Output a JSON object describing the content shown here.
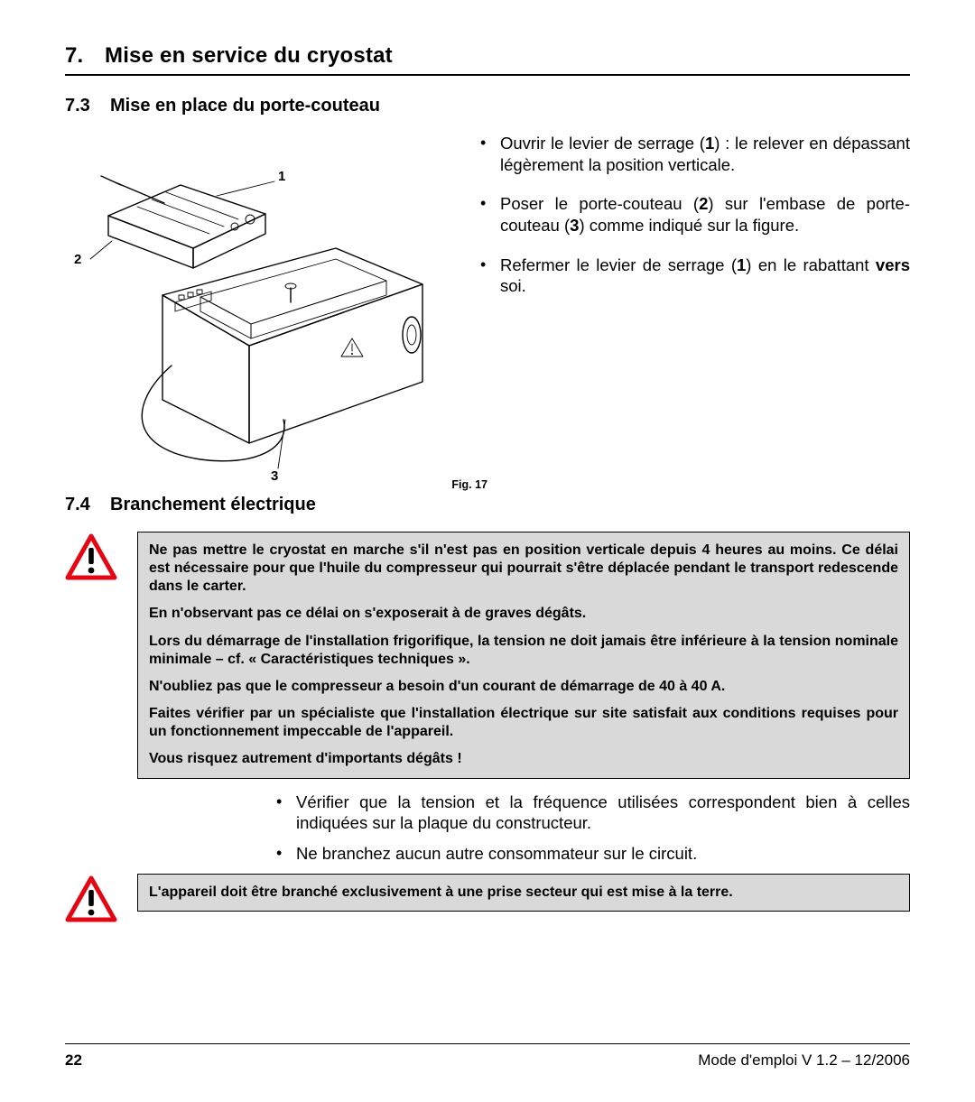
{
  "chapter": {
    "number": "7.",
    "title": "Mise en service du cryostat"
  },
  "section73": {
    "number": "7.3",
    "title": "Mise en place du porte-couteau",
    "figure": {
      "caption": "Fig. 17",
      "callouts": {
        "c1": "1",
        "c2": "2",
        "c3": "3"
      }
    },
    "bullets": [
      {
        "html": "Ouvrir le levier de serrage (<b>1</b>) : le relever en dépassant légèrement la position verticale."
      },
      {
        "html": "Poser le porte-couteau (<b>2</b>) sur l'embase de porte-couteau (<b>3</b>) comme indiqué sur la figure."
      },
      {
        "html": "Refermer le levier de serrage (<b>1</b>) en le rabattant <b>vers</b> soi."
      }
    ]
  },
  "section74": {
    "number": "7.4",
    "title": "Branchement électrique",
    "warning1": {
      "p1": "Ne pas mettre le cryostat en marche s'il n'est pas en position verticale depuis 4 heures au moins. Ce délai est nécessaire pour que l'huile du compresseur qui pourrait s'être déplacée pendant le transport redescende dans le carter.",
      "p2": "En n'observant pas ce délai on s'exposerait à de graves dégâts.",
      "p3": "Lors du démarrage de l'installation frigorifique, la tension ne doit jamais être inférieure à la tension nominale minimale – cf. « Caractéristiques techniques ».",
      "p4": "N'oubliez pas que le compresseur a besoin d'un courant de démarrage de 40 à 40 A.",
      "p5": "Faites vérifier par un spécialiste que l'installation électrique sur site satisfait aux conditions requises pour un fonctionnement impeccable de l'appareil.",
      "p6": "Vous risquez autrement d'importants dégâts !"
    },
    "bullets": [
      "Vérifier que la tension et la fréquence utilisées correspondent bien à celles indiquées sur la plaque du constructeur.",
      "Ne branchez aucun autre consommateur sur le circuit."
    ],
    "warning2": "L'appareil doit être branché exclusivement à une prise secteur qui est mise à la terre."
  },
  "footer": {
    "page": "22",
    "doc": "Mode d'emploi V 1.2 – 12/2006"
  },
  "style": {
    "warn_triangle": {
      "stroke": "#e30613",
      "fill_bg": "#ffffff",
      "bang": "#000000"
    },
    "warn_box_bg": "#d9d9d9"
  }
}
